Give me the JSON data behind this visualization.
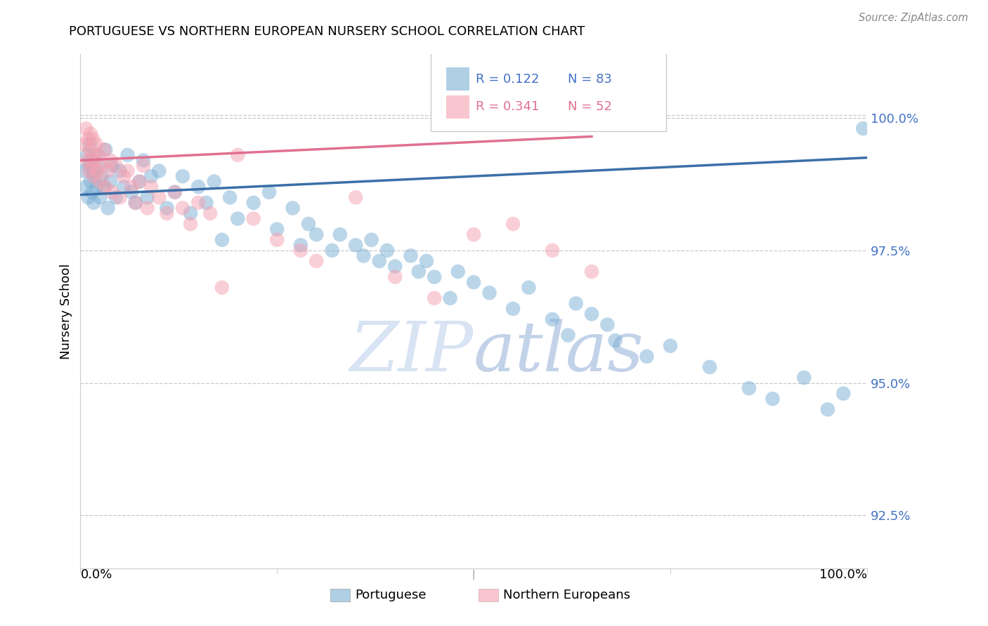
{
  "title": "PORTUGUESE VS NORTHERN EUROPEAN NURSERY SCHOOL CORRELATION CHART",
  "source": "Source: ZipAtlas.com",
  "ylabel": "Nursery School",
  "legend_blue_r": "0.122",
  "legend_blue_n": "83",
  "legend_pink_r": "0.341",
  "legend_pink_n": "52",
  "legend_blue_label": "Portuguese",
  "legend_pink_label": "Northern Europeans",
  "watermark_zip": "ZIP",
  "watermark_atlas": "atlas",
  "xlim": [
    0,
    100
  ],
  "ylim": [
    91.5,
    101.2
  ],
  "yticks": [
    92.5,
    95.0,
    97.5,
    100.0
  ],
  "ytick_labels": [
    "92.5%",
    "95.0%",
    "97.5%",
    "100.0%"
  ],
  "blue_color": "#7BAFD4",
  "pink_color": "#F4A0B0",
  "blue_line_color": "#3B6FA8",
  "pink_line_color": "#E07090",
  "blue_points_x": [
    0.5,
    0.7,
    0.9,
    1.0,
    1.1,
    1.2,
    1.3,
    1.4,
    1.5,
    1.6,
    1.7,
    1.8,
    2.0,
    2.1,
    2.3,
    2.5,
    2.7,
    3.0,
    3.2,
    3.5,
    3.8,
    4.0,
    4.5,
    5.0,
    5.5,
    6.0,
    6.5,
    7.0,
    7.5,
    8.0,
    8.5,
    9.0,
    10.0,
    11.0,
    12.0,
    13.0,
    14.0,
    15.0,
    16.0,
    17.0,
    18.0,
    19.0,
    20.0,
    22.0,
    24.0,
    25.0,
    27.0,
    28.0,
    29.0,
    30.0,
    32.0,
    33.0,
    35.0,
    36.0,
    37.0,
    38.0,
    39.0,
    40.0,
    42.0,
    43.0,
    44.0,
    45.0,
    47.0,
    48.0,
    50.0,
    52.0,
    55.0,
    57.0,
    60.0,
    62.0,
    63.0,
    65.0,
    67.0,
    68.0,
    72.0,
    75.0,
    80.0,
    85.0,
    88.0,
    92.0,
    95.0,
    97.0,
    99.5
  ],
  "blue_points_y": [
    99.0,
    98.7,
    99.3,
    98.5,
    99.1,
    99.5,
    98.8,
    99.2,
    98.6,
    99.0,
    98.4,
    98.9,
    99.3,
    98.7,
    99.1,
    98.5,
    98.9,
    98.7,
    99.4,
    98.3,
    98.8,
    99.1,
    98.5,
    99.0,
    98.7,
    99.3,
    98.6,
    98.4,
    98.8,
    99.2,
    98.5,
    98.9,
    99.0,
    98.3,
    98.6,
    98.9,
    98.2,
    98.7,
    98.4,
    98.8,
    97.7,
    98.5,
    98.1,
    98.4,
    98.6,
    97.9,
    98.3,
    97.6,
    98.0,
    97.8,
    97.5,
    97.8,
    97.6,
    97.4,
    97.7,
    97.3,
    97.5,
    97.2,
    97.4,
    97.1,
    97.3,
    97.0,
    96.6,
    97.1,
    96.9,
    96.7,
    96.4,
    96.8,
    96.2,
    95.9,
    96.5,
    96.3,
    96.1,
    95.8,
    95.5,
    95.7,
    95.3,
    94.9,
    94.7,
    95.1,
    94.5,
    94.8,
    99.8
  ],
  "pink_points_x": [
    0.5,
    0.7,
    0.9,
    1.0,
    1.1,
    1.2,
    1.3,
    1.4,
    1.5,
    1.6,
    1.7,
    1.8,
    2.0,
    2.1,
    2.3,
    2.5,
    2.7,
    3.0,
    3.2,
    3.5,
    3.8,
    4.0,
    4.5,
    5.0,
    5.5,
    6.0,
    6.5,
    7.0,
    7.5,
    8.0,
    8.5,
    9.0,
    10.0,
    11.0,
    12.0,
    13.0,
    14.0,
    15.0,
    16.5,
    18.0,
    20.0,
    22.0,
    25.0,
    28.0,
    30.0,
    35.0,
    40.0,
    45.0,
    50.0,
    55.0,
    60.0,
    65.0
  ],
  "pink_points_y": [
    99.5,
    99.8,
    99.2,
    99.6,
    99.0,
    99.4,
    99.7,
    99.1,
    99.3,
    99.6,
    98.9,
    99.2,
    99.5,
    99.0,
    99.3,
    98.8,
    99.1,
    99.4,
    98.7,
    99.0,
    99.2,
    98.6,
    99.1,
    98.5,
    98.9,
    99.0,
    98.7,
    98.4,
    98.8,
    99.1,
    98.3,
    98.7,
    98.5,
    98.2,
    98.6,
    98.3,
    98.0,
    98.4,
    98.2,
    96.8,
    99.3,
    98.1,
    97.7,
    97.5,
    97.3,
    98.5,
    97.0,
    96.6,
    97.8,
    98.0,
    97.5,
    97.1
  ],
  "blue_trend_x": [
    0,
    100
  ],
  "blue_trend_y": [
    98.55,
    99.25
  ],
  "pink_trend_x": [
    0,
    65
  ],
  "pink_trend_y": [
    99.2,
    99.65
  ]
}
